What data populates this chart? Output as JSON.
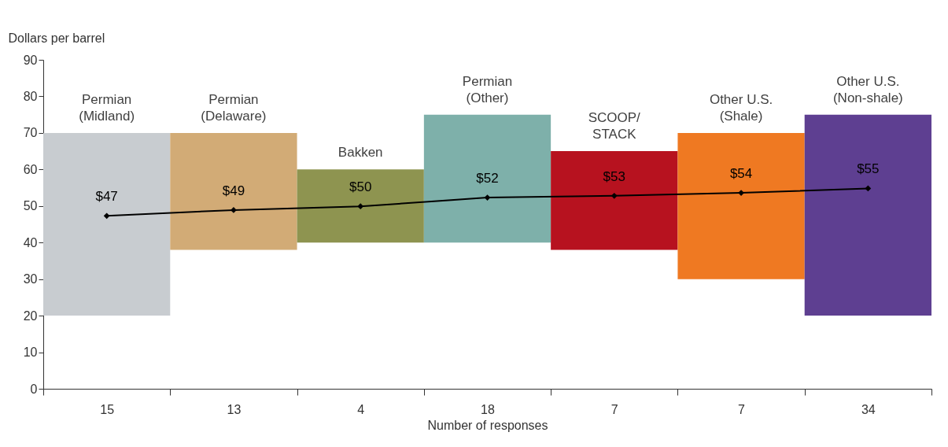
{
  "chart_data": {
    "type": "bar",
    "xlabel": "Number of responses",
    "ylabel": "Dollars per barrel",
    "categories": [
      "15",
      "13",
      "4",
      "18",
      "7",
      "7",
      "34"
    ],
    "ylim": [
      0,
      90
    ],
    "yticks": [
      0,
      10,
      20,
      30,
      40,
      50,
      60,
      70,
      80,
      90
    ],
    "grid": false,
    "annotations": [
      "Permian\n(Midland)",
      "Permian\n(Delaware)",
      "Bakken",
      "Permian\n(Other)",
      "SCOOP/\nSTACK",
      "Other U.S.\n(Shale)",
      "Other U.S.\n(Non-shale)"
    ],
    "series": [
      {
        "base": [
          20,
          38,
          40,
          40,
          38,
          30,
          20
        ],
        "colors": [
          "#c8ccd0",
          "#d2ab76",
          "#8e9450",
          "#7eb0aa",
          "#b7121f",
          "#ef7922",
          "#5e3f91"
        ],
        "values": [
          50,
          32,
          20,
          35,
          27,
          40,
          55
        ]
      },
      {
        "type": "line",
        "color": "#000000",
        "marker": "diamond",
        "values": [
          47.3,
          48.9,
          49.9,
          52.3,
          52.8,
          53.6,
          54.8
        ],
        "value_labels": [
          "$47",
          "$49",
          "$50",
          "$52",
          "$53",
          "$54",
          "$55"
        ]
      }
    ]
  }
}
